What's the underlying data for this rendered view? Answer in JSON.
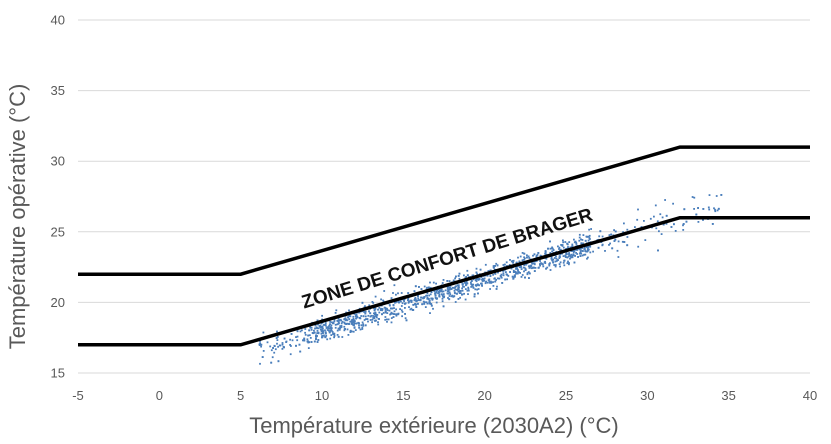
{
  "chart_data": {
    "type": "scatter",
    "title": "",
    "xlabel": "Température extérieure (2030A2) (°C)",
    "ylabel": "Température opérative (°C)",
    "xlim": [
      -5,
      40
    ],
    "ylim": [
      15,
      40
    ],
    "x_ticks": [
      "-5",
      "0",
      "5",
      "10",
      "15",
      "20",
      "25",
      "30",
      "35",
      "40"
    ],
    "y_ticks": [
      "15",
      "20",
      "25",
      "30",
      "35",
      "40"
    ],
    "grid": "horizontal",
    "legend": "none",
    "annotation": "ZONE DE CONFORT DE BRAGER",
    "comfort_zone": {
      "upper": {
        "x": [
          -5,
          5,
          32,
          40
        ],
        "y": [
          22,
          22,
          31,
          31
        ]
      },
      "lower": {
        "x": [
          -5,
          5,
          32,
          40
        ],
        "y": [
          17,
          17,
          26,
          26
        ]
      }
    },
    "scatter_trend": {
      "description_values": "operative temperature ≈ 0.37 × outdoor + 14.4",
      "x_range": [
        6,
        34.5
      ],
      "approx_points": 2500
    },
    "colors": {
      "points": "#4a7ebb",
      "comfort_lines": "#000000",
      "grid": "#d9d9d9",
      "text": "#595959"
    }
  }
}
